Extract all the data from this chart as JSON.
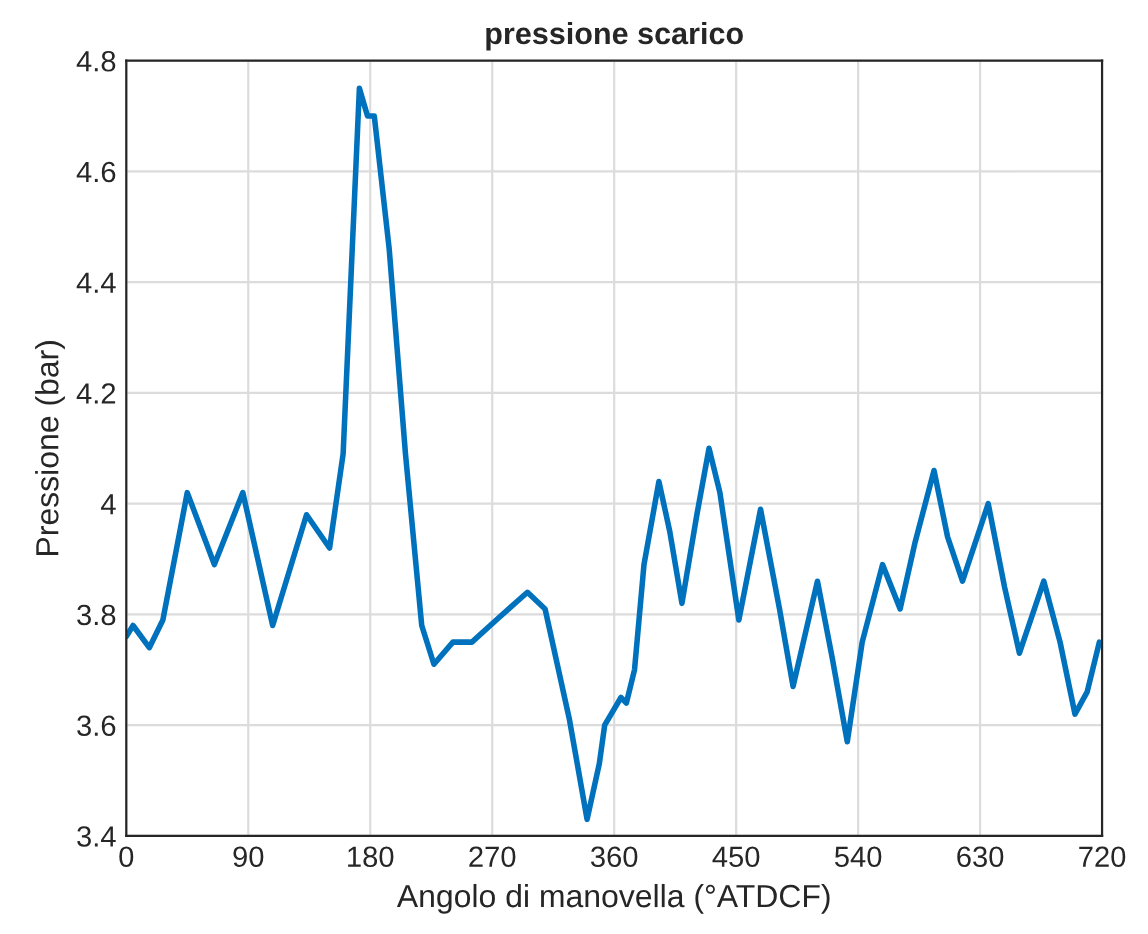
{
  "chart_data": {
    "type": "line",
    "title": "pressione scarico",
    "xlabel": "Angolo di manovella (°ATDCF)",
    "ylabel": "Pressione (bar)",
    "xlim": [
      0,
      720
    ],
    "xticks": [
      0,
      90,
      180,
      270,
      360,
      450,
      540,
      630,
      720
    ],
    "ylim": [
      3.4,
      4.8
    ],
    "yticks": [
      3.4,
      3.6,
      3.8,
      4,
      4.2,
      4.4,
      4.6,
      4.8
    ],
    "grid": true,
    "marker": "none",
    "line_style": "solid",
    "series": [
      {
        "color": "#0072bd",
        "x": [
          0,
          5,
          17,
          27,
          45,
          65,
          86,
          108,
          133,
          150,
          160,
          172,
          178,
          183,
          194,
          206,
          218,
          227,
          241,
          255,
          273,
          296,
          309,
          327,
          340,
          349,
          353,
          365,
          369,
          375,
          382,
          393,
          401,
          410,
          421,
          430,
          438,
          452,
          468,
          482,
          492,
          510,
          521,
          532,
          543,
          558,
          571,
          582,
          596,
          606,
          617,
          636,
          648,
          659,
          677,
          689,
          700,
          709,
          718
        ],
        "values": [
          3.76,
          3.78,
          3.74,
          3.79,
          4.02,
          3.89,
          4.02,
          3.78,
          3.98,
          3.92,
          4.09,
          4.75,
          4.7,
          4.7,
          4.46,
          4.09,
          3.78,
          3.71,
          3.75,
          3.75,
          3.79,
          3.84,
          3.81,
          3.61,
          3.43,
          3.53,
          3.6,
          3.65,
          3.64,
          3.7,
          3.89,
          4.04,
          3.95,
          3.82,
          3.98,
          4.1,
          4.02,
          3.79,
          3.99,
          3.81,
          3.67,
          3.86,
          3.72,
          3.57,
          3.75,
          3.89,
          3.81,
          3.93,
          4.06,
          3.94,
          3.86,
          4.0,
          3.85,
          3.73,
          3.86,
          3.75,
          3.62,
          3.66,
          3.75
        ]
      }
    ]
  }
}
